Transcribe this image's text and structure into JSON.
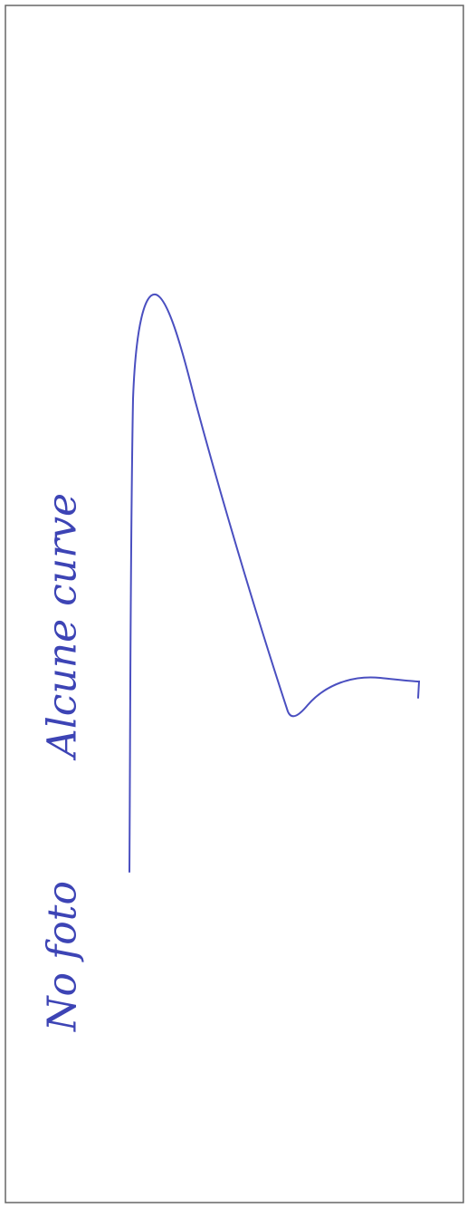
{
  "note": {
    "left_text": "No foto",
    "right_text": "Alcune curve"
  }
}
